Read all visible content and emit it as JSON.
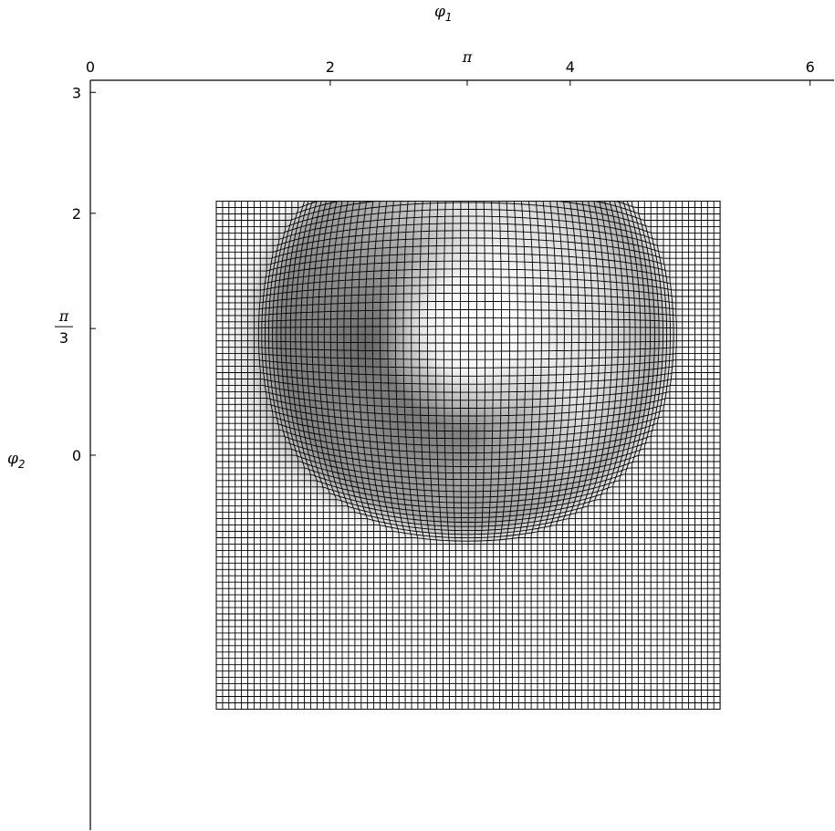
{
  "chart_data": {
    "type": "heatmap",
    "title": "",
    "x_axis": {
      "label": "φ",
      "label_subscript": "1",
      "range": [
        0,
        6.2
      ],
      "ticks": [
        {
          "value": 0,
          "label": "0"
        },
        {
          "value": 2,
          "label": "2"
        },
        {
          "value": 3.14159,
          "label": "π"
        },
        {
          "value": 4,
          "label": "4"
        },
        {
          "value": 6,
          "label": "6"
        }
      ],
      "position": "top"
    },
    "y_axis": {
      "label": "φ",
      "label_subscript": "2",
      "range": [
        -3.1,
        3.1
      ],
      "inverted": true,
      "ticks": [
        {
          "value": 3,
          "label": "3"
        },
        {
          "value": 2,
          "label": "2"
        },
        {
          "value": 1.0472,
          "label": "π/3",
          "numerator": "π",
          "denominator": "3"
        },
        {
          "value": 0,
          "label": "0"
        }
      ],
      "position": "left"
    },
    "mesh": {
      "x_range": [
        1.05,
        5.25
      ],
      "y_range": [
        -2.1,
        2.1
      ],
      "cells_x": 80,
      "cells_y": 80,
      "line_color": "#000000",
      "shading": {
        "center": [
          3.14,
          1.0
        ],
        "radius": 1.75,
        "highlight": [
          3.14,
          1.05
        ],
        "shadow": [
          2.3,
          0.9
        ],
        "lower_shade": [
          3.14,
          0.15
        ]
      }
    },
    "grid": false,
    "legend": "none"
  }
}
